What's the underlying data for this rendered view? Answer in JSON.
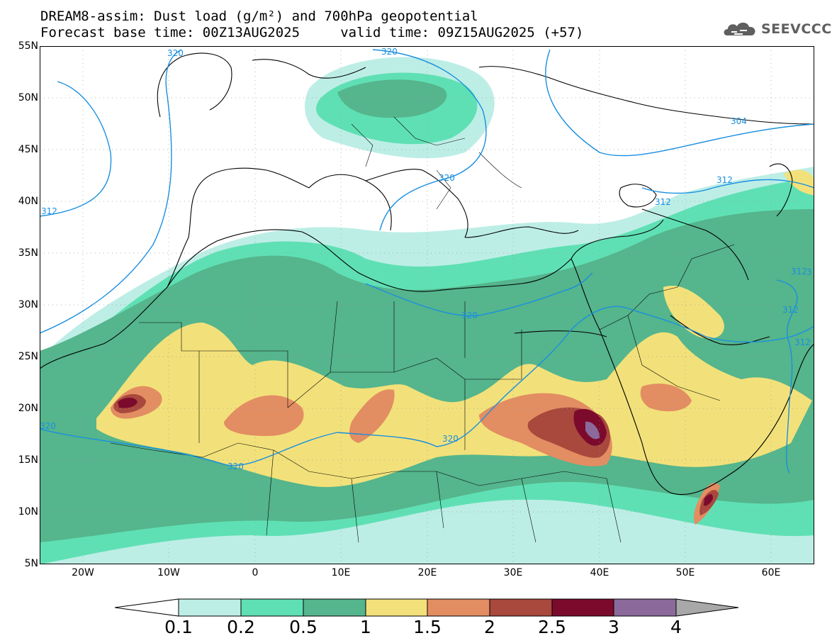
{
  "title": {
    "line1": "DREAM8-assim: Dust load (g/m²) and 700hPa geopotential",
    "line2": "Forecast base time: 00Z13AUG2025     valid time: 09Z15AUG2025 (+57)"
  },
  "logo": {
    "text": "SEEVCCC",
    "icon": "cloud-logo-icon"
  },
  "map": {
    "lon_range": [
      -25,
      65
    ],
    "lat_range": [
      5,
      55
    ],
    "lat_labels": [
      "55N",
      "50N",
      "45N",
      "40N",
      "35N",
      "30N",
      "25N",
      "20N",
      "15N",
      "10N",
      "5N"
    ],
    "lon_labels": [
      "20W",
      "10W",
      "0",
      "10E",
      "20E",
      "30E",
      "40E",
      "50E",
      "60E"
    ],
    "contour_labels": [
      "320",
      "320",
      "304",
      "312",
      "312",
      "312",
      "320",
      "320",
      "320",
      "312",
      "320",
      "312",
      "312",
      "3"
    ]
  },
  "colorbar": {
    "labels": [
      "0.1",
      "0.2",
      "0.5",
      "1",
      "1.5",
      "2",
      "2.5",
      "3",
      "4"
    ],
    "colors": [
      "#ffffff",
      "#bdeee6",
      "#5fe0b4",
      "#55b58c",
      "#f2e17a",
      "#e38d62",
      "#a9483d",
      "#7b0a2c",
      "#8b6a9b",
      "#a8a8a8"
    ]
  },
  "fill_colors": {
    "light": "#bdeee6",
    "green": "#5fe0b4",
    "dark_green": "#55b58c",
    "yellow": "#f2e17a",
    "orange": "#e38d62",
    "brown": "#a9483d",
    "maroon": "#7b0a2c",
    "purple": "#8b6a9b",
    "contour": "#1a8fe0"
  }
}
